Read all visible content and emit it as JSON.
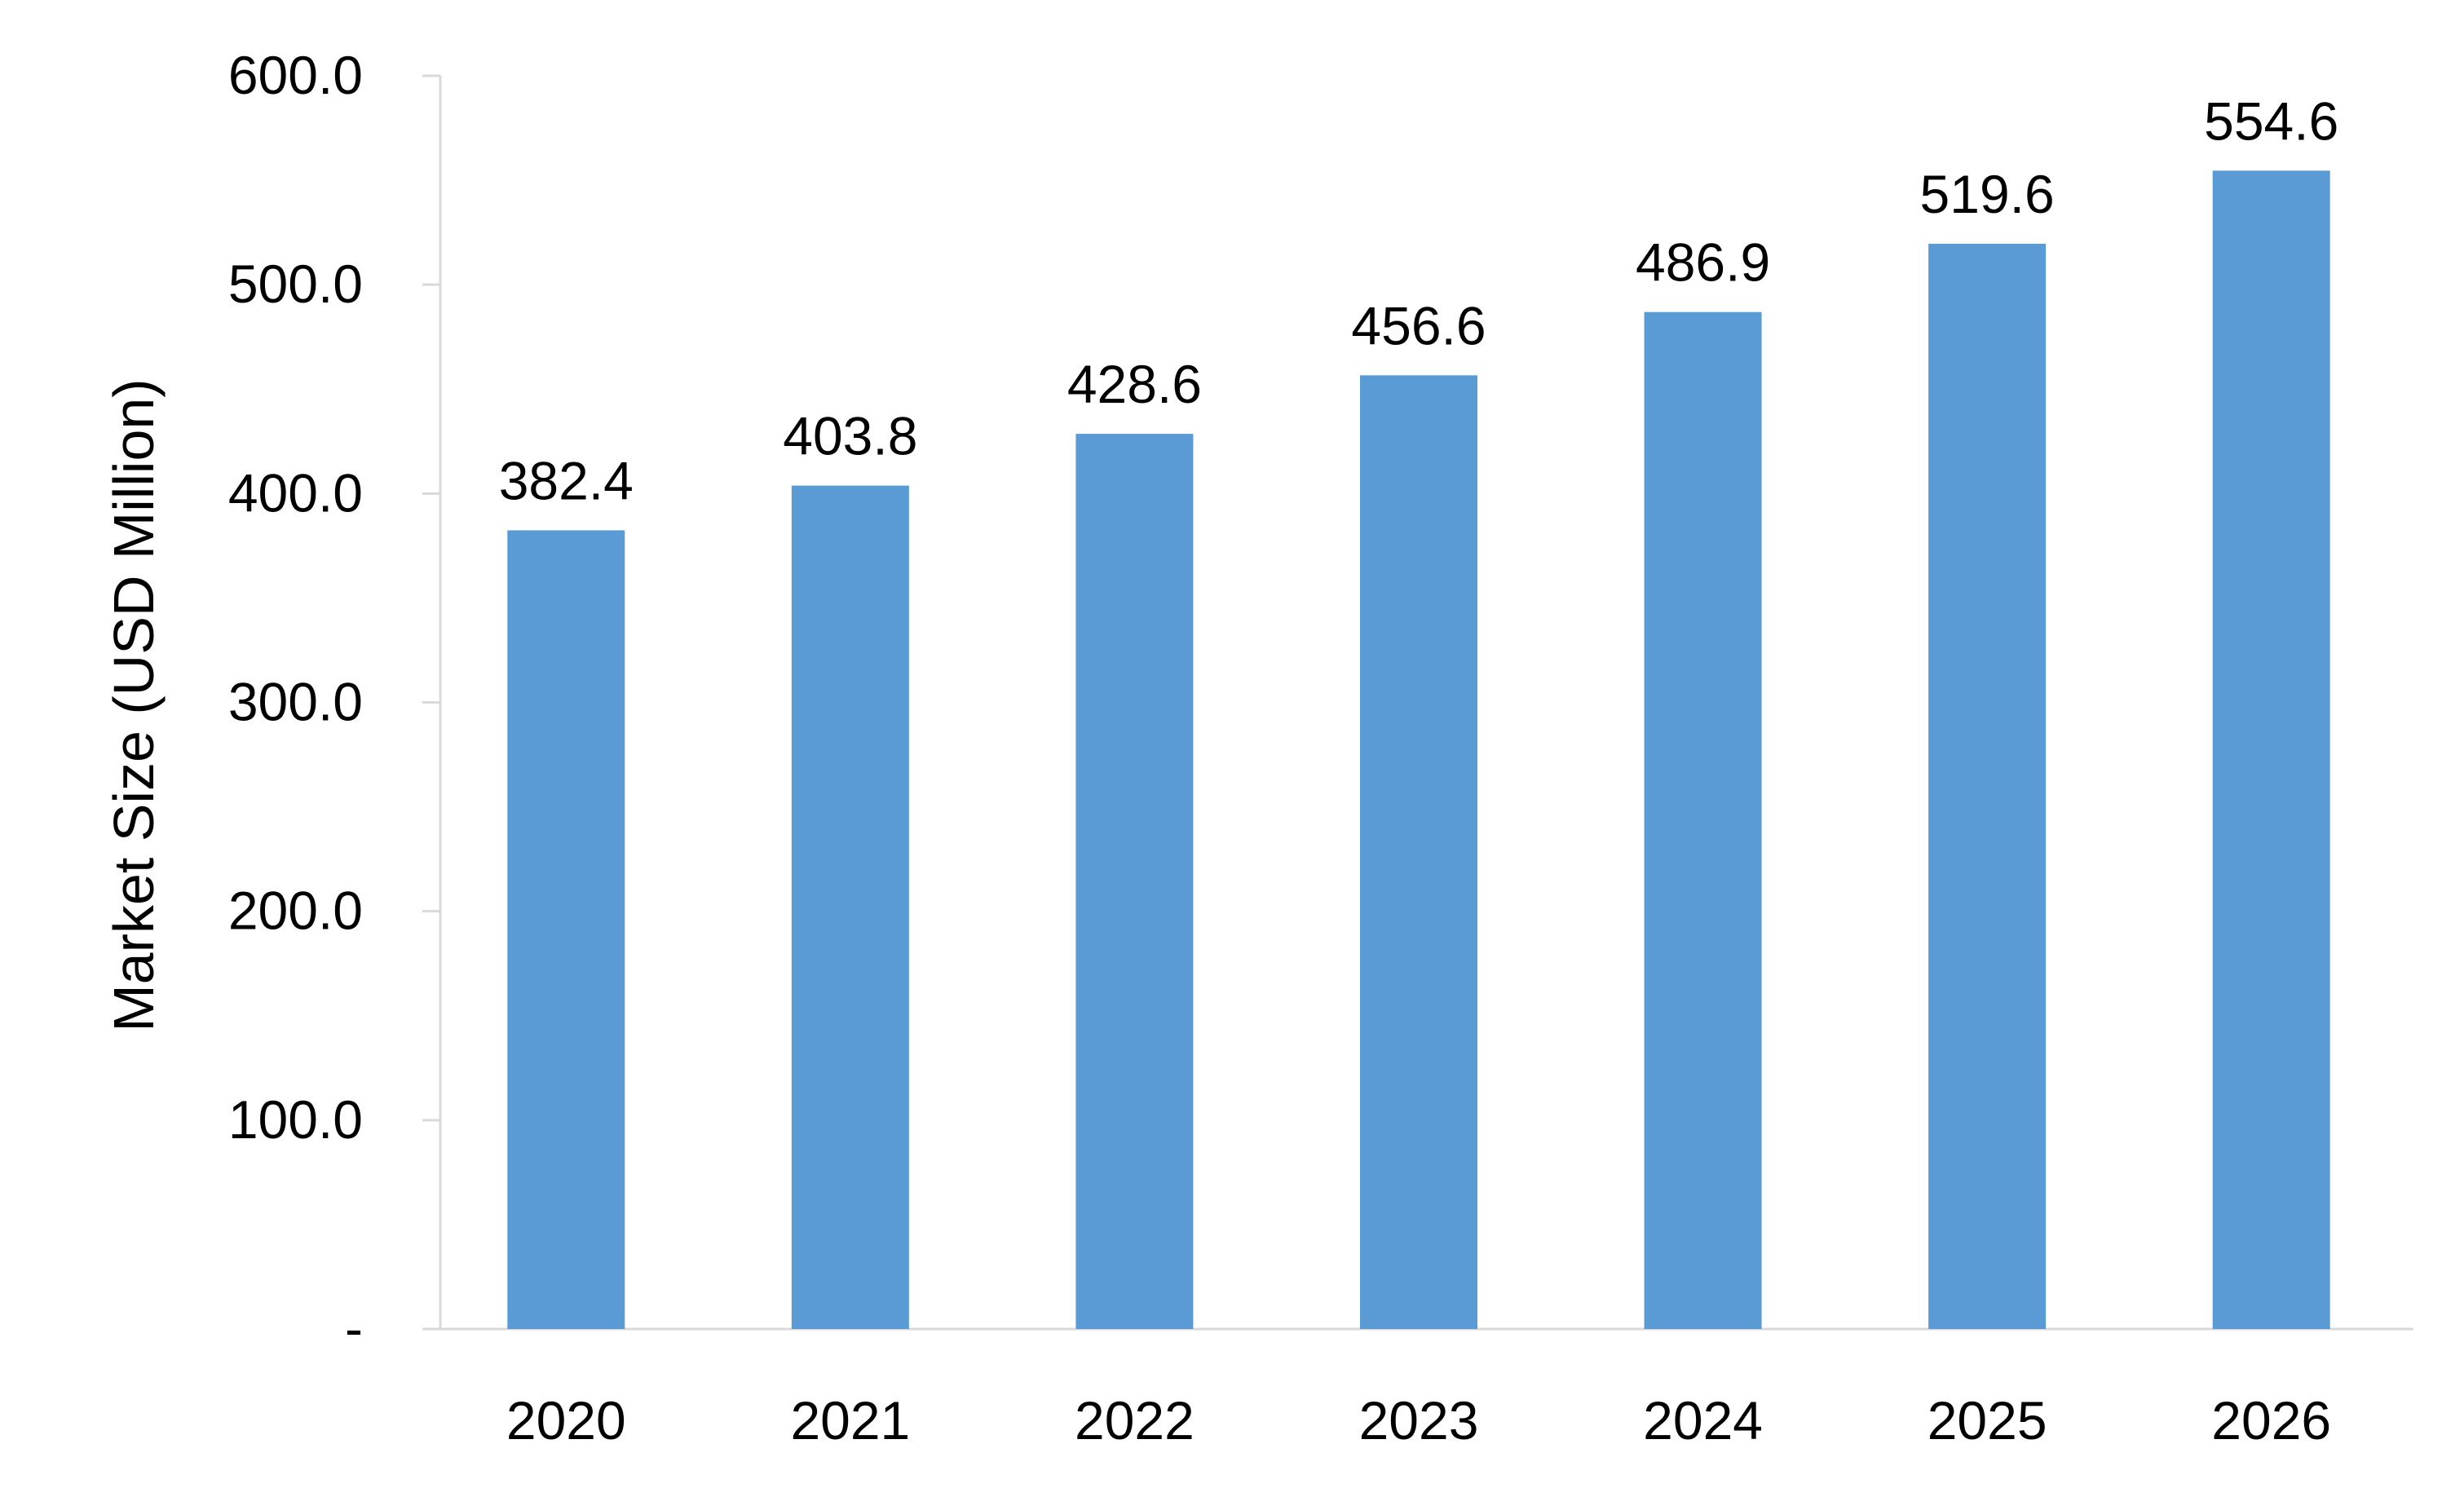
{
  "chart_data": {
    "type": "bar",
    "categories": [
      "2020",
      "2021",
      "2022",
      "2023",
      "2024",
      "2025",
      "2026"
    ],
    "values": [
      382.4,
      403.8,
      428.6,
      456.6,
      486.9,
      519.6,
      554.6
    ],
    "value_labels": [
      "382.4",
      "403.8",
      "428.6",
      "456.6",
      "486.9",
      "519.6",
      "554.6"
    ],
    "title": "",
    "xlabel": "",
    "ylabel": "Market Size (USD Million)",
    "ylim": [
      0,
      600
    ],
    "yticks": [
      0,
      100,
      200,
      300,
      400,
      500,
      600
    ],
    "ytick_labels": [
      "-",
      "100.0",
      "200.0",
      "300.0",
      "400.0",
      "500.0",
      "600.0"
    ],
    "grid": false,
    "legend": "none",
    "bar_color": "#5b9bd5",
    "axis_color": "#d9d9d9"
  }
}
